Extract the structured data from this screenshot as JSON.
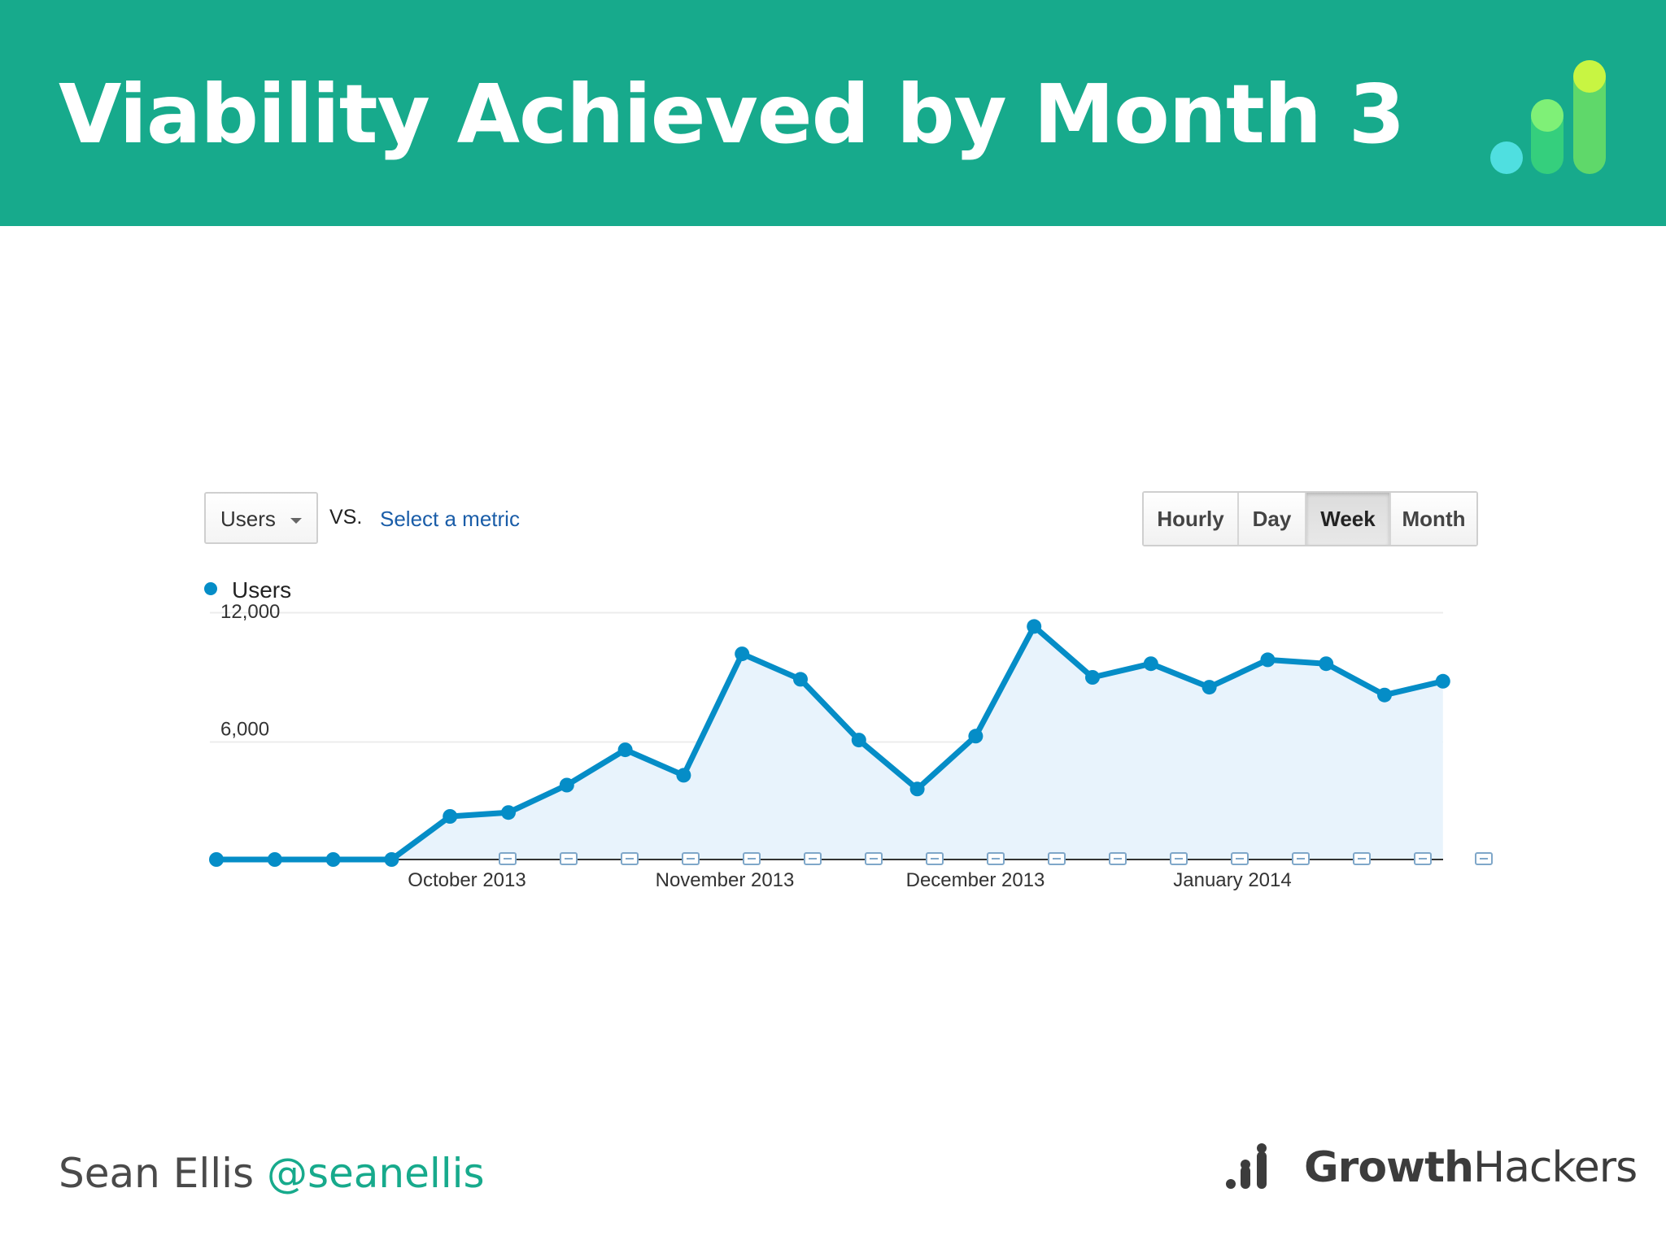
{
  "slide": {
    "title": "Viability Achieved by Month 3",
    "footer_name": "Sean Ellis",
    "footer_handle": "@seanellis",
    "brand_part1": "Growth",
    "brand_part2": "Hackers"
  },
  "controls": {
    "metric_label": "Users",
    "vs_label": "VS.",
    "compare_link": "Select a metric",
    "periods": [
      "Hourly",
      "Day",
      "Week",
      "Month"
    ],
    "active_period": "Week"
  },
  "colors": {
    "header": "#17aa8c",
    "line": "#058dc7",
    "area": "#e8f3fc",
    "link": "#1a5da8"
  },
  "chart_data": {
    "type": "area",
    "legend": [
      "Users"
    ],
    "legend_position": "top-left",
    "grid": true,
    "ylim": [
      0,
      12000
    ],
    "y_ticks": [
      "12,000",
      "6,000"
    ],
    "x_labels": [
      "October 2013",
      "November 2013",
      "December 2013",
      "January 2014"
    ],
    "series": [
      {
        "name": "Users",
        "values": [
          0,
          0,
          0,
          0,
          2200,
          2400,
          3800,
          5600,
          4300,
          10500,
          9200,
          6100,
          3600,
          6300,
          11900,
          9300,
          10000,
          8800,
          10200,
          10000,
          8400,
          9100
        ]
      }
    ]
  }
}
